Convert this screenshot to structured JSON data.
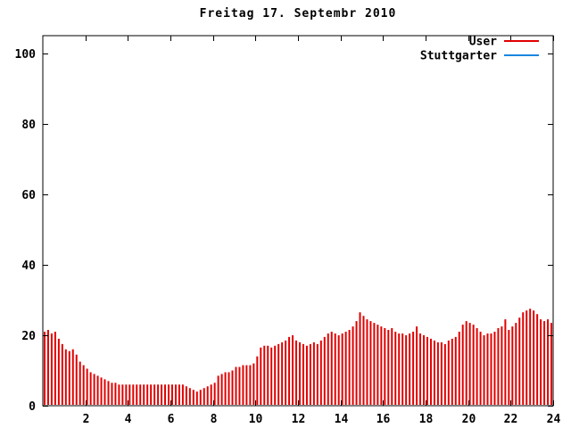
{
  "title": "Freitag 17. Septembr 2010",
  "legend": {
    "items": [
      {
        "label": "User",
        "color": "#e10000"
      },
      {
        "label": "Stuttgarter",
        "color": "#1a86e0"
      }
    ]
  },
  "axes": {
    "y_tick_labels": [
      "0",
      "20",
      "40",
      "60",
      "80",
      "100"
    ],
    "x_tick_labels": [
      "2",
      "4",
      "6",
      "8",
      "10",
      "12",
      "14",
      "16",
      "18",
      "20",
      "22",
      "24"
    ]
  },
  "chart_data": {
    "type": "bar",
    "title": "Freitag 17. Septembr 2010",
    "xlabel": "",
    "ylabel": "",
    "xlim": [
      0,
      24
    ],
    "ylim": [
      0,
      105
    ],
    "xticks": [
      2,
      4,
      6,
      8,
      10,
      12,
      14,
      16,
      18,
      20,
      22,
      24
    ],
    "yticks": [
      0,
      20,
      40,
      60,
      80,
      100
    ],
    "grid": false,
    "legend_position": "top-right-inside",
    "sample_interval_minutes": 10,
    "x_start_hour": 0,
    "x_end_hour": 24,
    "series": [
      {
        "name": "User",
        "color": "#e10000",
        "style": "impulses",
        "values": [
          21,
          21.5,
          20.5,
          21,
          19,
          17.5,
          16,
          15.5,
          16,
          14.5,
          12.5,
          11.5,
          10.5,
          9.5,
          9,
          8.5,
          8,
          7.5,
          7,
          6.5,
          6.5,
          6,
          6,
          6,
          6,
          6,
          6,
          6,
          6,
          6,
          6,
          6,
          6,
          6,
          6,
          6,
          6,
          6,
          6,
          6,
          5.5,
          5,
          4.5,
          4,
          4.5,
          5,
          5.5,
          6,
          6.5,
          8.5,
          9,
          9.5,
          9.5,
          10,
          11,
          11,
          11.5,
          11.5,
          11.5,
          12,
          14,
          16.5,
          17,
          17,
          16.5,
          17,
          17.5,
          18,
          18.5,
          19.5,
          20,
          18.5,
          18,
          17.5,
          17,
          17.5,
          18,
          17.5,
          18.5,
          19.5,
          20.5,
          21,
          20.5,
          20,
          20.5,
          21,
          21.5,
          22.5,
          24,
          26.5,
          25.5,
          24.5,
          24,
          23.5,
          23,
          22.5,
          22,
          21.5,
          22,
          21,
          20.5,
          20.5,
          20,
          20.5,
          21,
          22.5,
          20.5,
          20,
          19.5,
          19,
          18.5,
          18,
          18,
          17.5,
          18.5,
          19,
          19.5,
          21,
          23,
          24,
          23.5,
          23,
          22,
          21,
          20,
          20.5,
          20.5,
          21,
          22,
          22.5,
          24.5,
          21.5,
          22.5,
          23.5,
          25,
          26.5,
          27,
          27.5,
          27,
          26,
          24.5,
          24,
          24.5,
          23.5
        ]
      },
      {
        "name": "Stuttgarter",
        "color": "#1a86e0",
        "style": "impulses",
        "values": []
      }
    ]
  }
}
